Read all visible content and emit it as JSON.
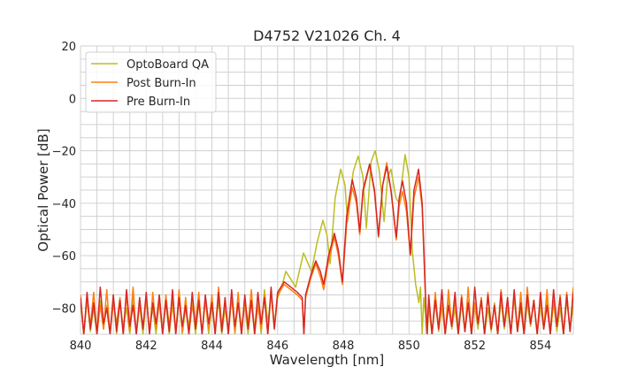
{
  "chart_data": {
    "type": "line",
    "title": "D4752 V21026 Ch. 4",
    "xlabel": "Wavelength [nm]",
    "ylabel": "Optical Power [dB]",
    "xlim": [
      840,
      855
    ],
    "ylim": [
      -90,
      20
    ],
    "xticks": [
      840,
      842,
      844,
      846,
      848,
      850,
      852,
      854
    ],
    "yticks": [
      20,
      0,
      -20,
      -40,
      -60,
      -80
    ],
    "xtick_labels": [
      "840",
      "842",
      "844",
      "846",
      "848",
      "850",
      "852",
      "854"
    ],
    "ytick_labels": [
      "20",
      "0",
      "−20",
      "−40",
      "−60",
      "−80"
    ],
    "grid": true,
    "minor_grid": true,
    "legend_position": "top-left",
    "series": [
      {
        "name": "OptoBoard QA",
        "color": "#bcbd22",
        "noise_left": {
          "x_start": 840.0,
          "step": 0.1,
          "y": [
            -78,
            -90,
            -76,
            -89,
            -80,
            -90,
            -77,
            -88,
            -79,
            -90,
            -75,
            -90,
            -78,
            -87,
            -80,
            -90,
            -76,
            -89,
            -79,
            -90,
            -77,
            -88,
            -80,
            -90,
            -75,
            -89,
            -78,
            -90,
            -79,
            -88,
            -76,
            -90,
            -80,
            -87,
            -77,
            -90,
            -78,
            -89,
            -76,
            -90,
            -79,
            -88,
            -77,
            -90,
            -80,
            -89,
            -75,
            -90,
            -78,
            -87,
            -79,
            -90,
            -77,
            -88,
            -76,
            -90,
            -73,
            -86,
            -75,
            -88
          ]
        },
        "points": [
          [
            846.0,
            -76
          ],
          [
            846.1,
            -73
          ],
          [
            846.25,
            -66
          ],
          [
            846.4,
            -69
          ],
          [
            846.55,
            -72
          ],
          [
            846.79,
            -59
          ],
          [
            847.03,
            -66
          ],
          [
            847.2,
            -55
          ],
          [
            847.38,
            -46.5
          ],
          [
            847.5,
            -52
          ],
          [
            847.6,
            -63
          ],
          [
            847.75,
            -38
          ],
          [
            847.92,
            -27
          ],
          [
            848.05,
            -33
          ],
          [
            848.13,
            -47
          ],
          [
            848.3,
            -28
          ],
          [
            848.45,
            -22
          ],
          [
            848.6,
            -30
          ],
          [
            848.7,
            -49.5
          ],
          [
            848.85,
            -24
          ],
          [
            848.97,
            -20
          ],
          [
            849.1,
            -28
          ],
          [
            849.24,
            -47
          ],
          [
            849.35,
            -30
          ],
          [
            849.45,
            -27
          ],
          [
            849.6,
            -38
          ],
          [
            849.7,
            -40
          ],
          [
            849.88,
            -21.5
          ],
          [
            850.0,
            -30
          ],
          [
            850.1,
            -58
          ],
          [
            850.2,
            -71
          ],
          [
            850.3,
            -78
          ],
          [
            850.35,
            -72
          ],
          [
            850.4,
            -90
          ],
          [
            850.45,
            -76
          ],
          [
            850.55,
            -90
          ]
        ],
        "noise_right": {
          "x_start": 850.6,
          "step": 0.1,
          "y": [
            -80,
            -90,
            -77,
            -89,
            -79,
            -90,
            -76,
            -88,
            -80,
            -90,
            -78,
            -89,
            -77,
            -90,
            -79,
            -88,
            -76,
            -90,
            -80,
            -89,
            -78,
            -90,
            -77,
            -88,
            -79,
            -90,
            -76,
            -89,
            -80,
            -90,
            -78,
            -87,
            -77,
            -90,
            -79,
            -88,
            -76,
            -90,
            -78,
            -89,
            -80,
            -90,
            -77,
            -88,
            -79
          ]
        }
      },
      {
        "name": "Post Burn-In",
        "color": "#ff7f0e",
        "noise_left": {
          "x_start": 840.0,
          "step": 0.1,
          "y": [
            -75,
            -90,
            -77,
            -87,
            -74,
            -90,
            -79,
            -88,
            -73,
            -90,
            -78,
            -86,
            -76,
            -90,
            -75,
            -89,
            -72,
            -90,
            -79,
            -87,
            -76,
            -90,
            -74,
            -88,
            -78,
            -90,
            -75,
            -87,
            -77,
            -90,
            -73,
            -89,
            -76,
            -90,
            -79,
            -86,
            -74,
            -90,
            -77,
            -88,
            -75,
            -90,
            -72,
            -87,
            -78,
            -90,
            -76,
            -89,
            -74,
            -90,
            -77,
            -86,
            -73,
            -90,
            -79,
            -88,
            -75,
            -90,
            -74,
            -87
          ]
        },
        "points": [
          [
            846.0,
            -75
          ],
          [
            846.2,
            -71
          ],
          [
            846.4,
            -73
          ],
          [
            846.6,
            -75
          ],
          [
            846.75,
            -77
          ],
          [
            846.8,
            -90
          ],
          [
            846.85,
            -76
          ],
          [
            847.0,
            -69
          ],
          [
            847.16,
            -63
          ],
          [
            847.3,
            -68
          ],
          [
            847.4,
            -73
          ],
          [
            847.55,
            -62
          ],
          [
            847.73,
            -53
          ],
          [
            847.85,
            -60
          ],
          [
            847.97,
            -71
          ],
          [
            848.1,
            -48
          ],
          [
            848.27,
            -34
          ],
          [
            848.4,
            -40
          ],
          [
            848.5,
            -52
          ],
          [
            848.6,
            -36
          ],
          [
            848.8,
            -25.5
          ],
          [
            848.95,
            -36
          ],
          [
            849.07,
            -53
          ],
          [
            849.2,
            -33
          ],
          [
            849.32,
            -24.5
          ],
          [
            849.45,
            -35
          ],
          [
            849.61,
            -54
          ],
          [
            849.7,
            -41
          ],
          [
            849.8,
            -35.5
          ],
          [
            849.92,
            -43
          ],
          [
            850.04,
            -60
          ],
          [
            850.15,
            -38
          ],
          [
            850.29,
            -30
          ],
          [
            850.4,
            -42
          ],
          [
            850.5,
            -76
          ],
          [
            850.55,
            -90
          ]
        ],
        "noise_right": {
          "x_start": 850.6,
          "step": 0.1,
          "y": [
            -76,
            -90,
            -74,
            -88,
            -78,
            -90,
            -73,
            -87,
            -77,
            -90,
            -75,
            -89,
            -72,
            -90,
            -78,
            -86,
            -76,
            -90,
            -74,
            -88,
            -79,
            -90,
            -73,
            -87,
            -77,
            -90,
            -75,
            -89,
            -74,
            -90,
            -72,
            -86,
            -78,
            -90,
            -76,
            -88,
            -73,
            -90,
            -77,
            -87,
            -75,
            -90,
            -74,
            -89,
            -72
          ]
        }
      },
      {
        "name": "Pre Burn-In",
        "color": "#d62728",
        "noise_left": {
          "x_start": 840.0,
          "step": 0.1,
          "y": [
            -76,
            -90,
            -74,
            -88,
            -78,
            -90,
            -72,
            -86,
            -80,
            -90,
            -75,
            -89,
            -77,
            -90,
            -73,
            -87,
            -79,
            -90,
            -76,
            -88,
            -74,
            -90,
            -78,
            -86,
            -75,
            -90,
            -77,
            -89,
            -73,
            -90,
            -76,
            -87,
            -79,
            -90,
            -74,
            -88,
            -77,
            -90,
            -75,
            -86,
            -78,
            -90,
            -74,
            -89,
            -76,
            -90,
            -73,
            -87,
            -78,
            -90,
            -75,
            -88,
            -77,
            -90,
            -74,
            -86,
            -76,
            -90,
            -72,
            -88
          ]
        },
        "points": [
          [
            846.0,
            -74
          ],
          [
            846.2,
            -70
          ],
          [
            846.4,
            -72
          ],
          [
            846.6,
            -74
          ],
          [
            846.75,
            -76
          ],
          [
            846.8,
            -90
          ],
          [
            846.85,
            -75
          ],
          [
            847.0,
            -68
          ],
          [
            847.16,
            -62
          ],
          [
            847.3,
            -66
          ],
          [
            847.4,
            -71
          ],
          [
            847.55,
            -60
          ],
          [
            847.73,
            -51.5
          ],
          [
            847.85,
            -58
          ],
          [
            847.97,
            -70
          ],
          [
            848.1,
            -45
          ],
          [
            848.27,
            -31
          ],
          [
            848.4,
            -38
          ],
          [
            848.5,
            -51
          ],
          [
            848.6,
            -35
          ],
          [
            848.8,
            -25
          ],
          [
            848.95,
            -35
          ],
          [
            849.07,
            -52.5
          ],
          [
            849.2,
            -33
          ],
          [
            849.32,
            -26
          ],
          [
            849.45,
            -35
          ],
          [
            849.61,
            -53
          ],
          [
            849.7,
            -38
          ],
          [
            849.8,
            -31.5
          ],
          [
            849.92,
            -40
          ],
          [
            850.04,
            -59.5
          ],
          [
            850.15,
            -35
          ],
          [
            850.29,
            -27
          ],
          [
            850.4,
            -40
          ],
          [
            850.5,
            -75
          ],
          [
            850.55,
            -90
          ]
        ],
        "noise_right": {
          "x_start": 850.6,
          "step": 0.1,
          "y": [
            -75,
            -90,
            -77,
            -88,
            -73,
            -90,
            -79,
            -87,
            -74,
            -90,
            -76,
            -89,
            -78,
            -90,
            -72,
            -86,
            -77,
            -90,
            -75,
            -88,
            -79,
            -90,
            -74,
            -87,
            -76,
            -90,
            -73,
            -89,
            -78,
            -90,
            -75,
            -86,
            -77,
            -90,
            -74,
            -88,
            -79,
            -90,
            -73,
            -87,
            -76,
            -90,
            -75,
            -89,
            -74
          ]
        }
      }
    ]
  }
}
